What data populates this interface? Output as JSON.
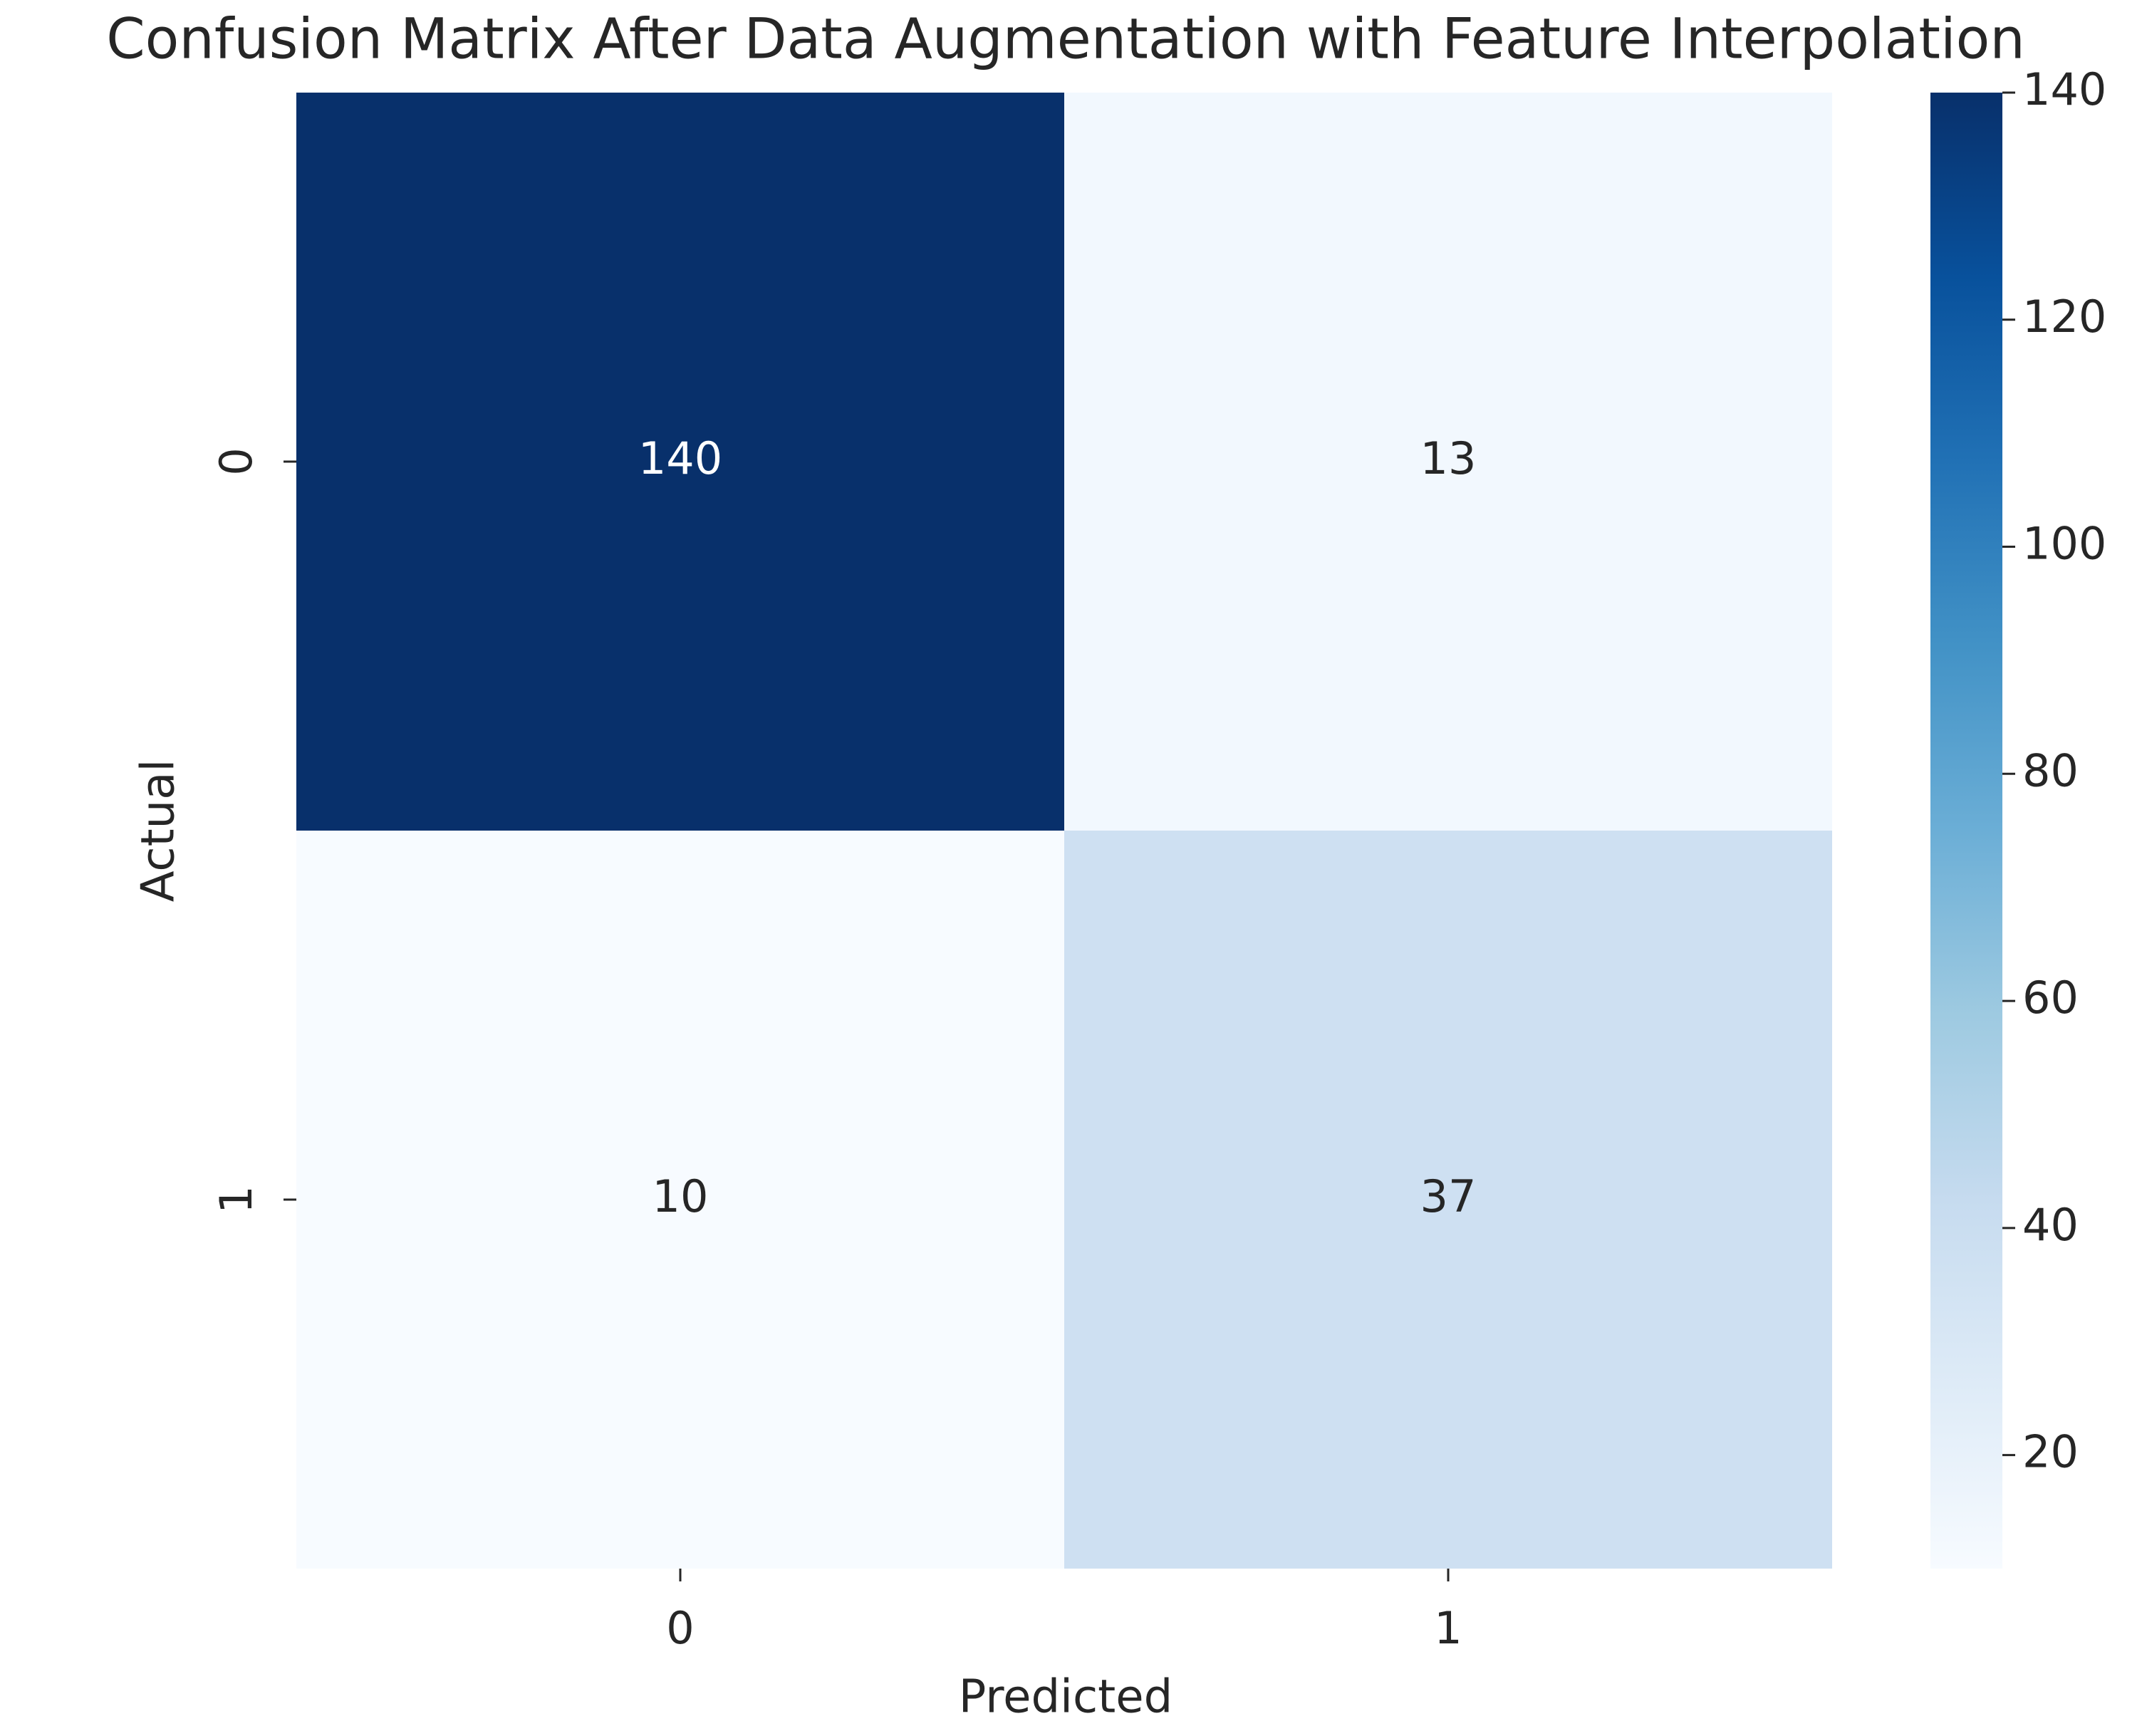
{
  "chart_data": {
    "type": "heatmap",
    "title": "Confusion Matrix After Data Augmentation with Feature Interpolation",
    "xlabel": "Predicted",
    "ylabel": "Actual",
    "x_categories": [
      "0",
      "1"
    ],
    "y_categories": [
      "0",
      "1"
    ],
    "values": [
      [
        140,
        13
      ],
      [
        10,
        37
      ]
    ],
    "colormap": "Blues",
    "zlim": [
      10,
      140
    ],
    "zticks": [
      20,
      40,
      60,
      80,
      100,
      120,
      140
    ]
  }
}
